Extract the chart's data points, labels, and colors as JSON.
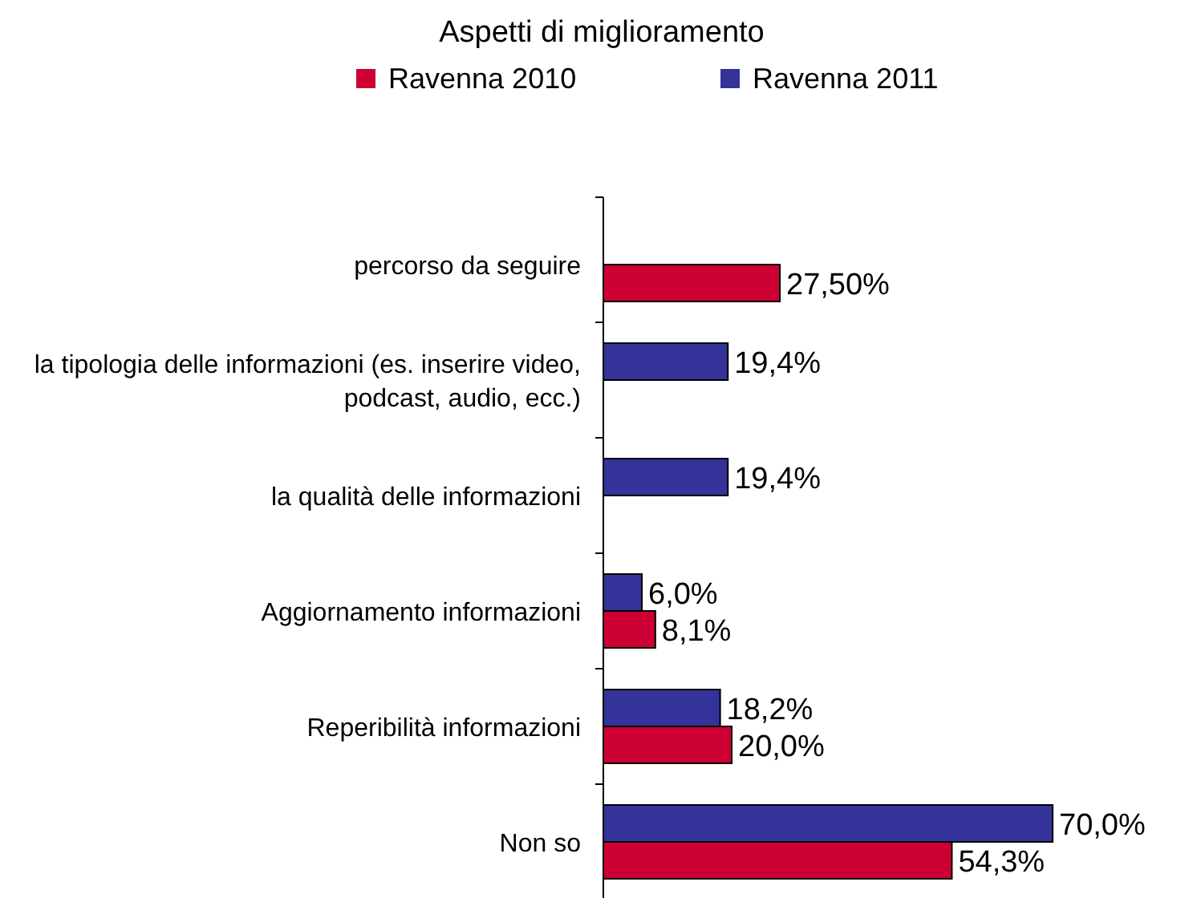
{
  "chart_data": {
    "type": "bar",
    "orientation": "horizontal",
    "title": "Aspetti di miglioramento",
    "legend": "top",
    "categories": [
      "percorso da seguire",
      "la tipologia delle informazioni (es. inserire video, podcast, audio, ecc.)",
      "la qualità delle informazioni",
      "Aggiornamento informazioni",
      "Reperibilità informazioni",
      "Non so"
    ],
    "series": [
      {
        "name": "Ravenna 2010",
        "color": "#cc0033",
        "values": [
          27.5,
          null,
          null,
          8.1,
          20.0,
          54.3
        ],
        "value_labels": [
          "27,50%",
          null,
          null,
          "8,1%",
          "20,0%",
          "54,3%"
        ]
      },
      {
        "name": "Ravenna 2011",
        "color": "#333399",
        "values": [
          null,
          19.4,
          19.4,
          6.0,
          18.2,
          70.0
        ],
        "value_labels": [
          null,
          "19,4%",
          "19,4%",
          "6,0%",
          "18,2%",
          "70,0%"
        ]
      }
    ]
  }
}
